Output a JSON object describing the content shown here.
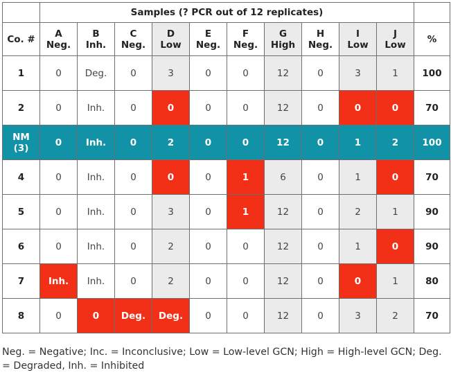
{
  "table": {
    "title": "Samples (? PCR out of 12 replicates)",
    "co_header": "Co. #",
    "pct_header": "%",
    "columns": [
      {
        "letter": "A",
        "label": "Neg.",
        "shaded": false
      },
      {
        "letter": "B",
        "label": "Inh.",
        "shaded": false
      },
      {
        "letter": "C",
        "label": "Neg.",
        "shaded": false
      },
      {
        "letter": "D",
        "label": "Low",
        "shaded": true
      },
      {
        "letter": "E",
        "label": "Neg.",
        "shaded": false
      },
      {
        "letter": "F",
        "label": "Neg.",
        "shaded": false
      },
      {
        "letter": "G",
        "label": "High",
        "shaded": true
      },
      {
        "letter": "H",
        "label": "Neg.",
        "shaded": false
      },
      {
        "letter": "I",
        "label": "Low",
        "shaded": true
      },
      {
        "letter": "J",
        "label": "Low",
        "shaded": true
      }
    ],
    "rows": [
      {
        "co": "1",
        "values": [
          "0",
          "Deg.",
          "0",
          "3",
          "0",
          "0",
          "12",
          "0",
          "3",
          "1"
        ],
        "flags": [
          false,
          false,
          false,
          false,
          false,
          false,
          false,
          false,
          false,
          false
        ],
        "pct": "100"
      },
      {
        "co": "2",
        "values": [
          "0",
          "Inh.",
          "0",
          "0",
          "0",
          "0",
          "12",
          "0",
          "0",
          "0"
        ],
        "flags": [
          false,
          false,
          false,
          true,
          false,
          false,
          false,
          false,
          true,
          true
        ],
        "pct": "70"
      },
      {
        "co": "NM (3)",
        "highlight": true,
        "values": [
          "0",
          "Inh.",
          "0",
          "2",
          "0",
          "0",
          "12",
          "0",
          "1",
          "2"
        ],
        "flags": [
          false,
          false,
          false,
          false,
          false,
          false,
          false,
          false,
          false,
          false
        ],
        "pct": "100"
      },
      {
        "co": "4",
        "values": [
          "0",
          "Inh.",
          "0",
          "0",
          "0",
          "1",
          "6",
          "0",
          "1",
          "0"
        ],
        "flags": [
          false,
          false,
          false,
          true,
          false,
          true,
          false,
          false,
          false,
          true
        ],
        "pct": "70"
      },
      {
        "co": "5",
        "values": [
          "0",
          "Inh.",
          "0",
          "3",
          "0",
          "1",
          "12",
          "0",
          "2",
          "1"
        ],
        "flags": [
          false,
          false,
          false,
          false,
          false,
          true,
          false,
          false,
          false,
          false
        ],
        "pct": "90"
      },
      {
        "co": "6",
        "values": [
          "0",
          "Inh.",
          "0",
          "2",
          "0",
          "0",
          "12",
          "0",
          "1",
          "0"
        ],
        "flags": [
          false,
          false,
          false,
          false,
          false,
          false,
          false,
          false,
          false,
          true
        ],
        "pct": "90"
      },
      {
        "co": "7",
        "values": [
          "Inh.",
          "Inh.",
          "0",
          "2",
          "0",
          "0",
          "12",
          "0",
          "0",
          "1"
        ],
        "flags": [
          true,
          false,
          false,
          false,
          false,
          false,
          false,
          false,
          true,
          false
        ],
        "pct": "80"
      },
      {
        "co": "8",
        "values": [
          "0",
          "0",
          "Deg.",
          "Deg.",
          "0",
          "0",
          "12",
          "0",
          "3",
          "2"
        ],
        "flags": [
          false,
          true,
          true,
          true,
          false,
          false,
          false,
          false,
          false,
          false
        ],
        "pct": "70"
      }
    ]
  },
  "footnote": "Neg. = Negative; Inc. = Inconclusive; Low = Low-level GCN; High = High-level GCN; Deg. = Degraded, Inh. = Inhibited"
}
